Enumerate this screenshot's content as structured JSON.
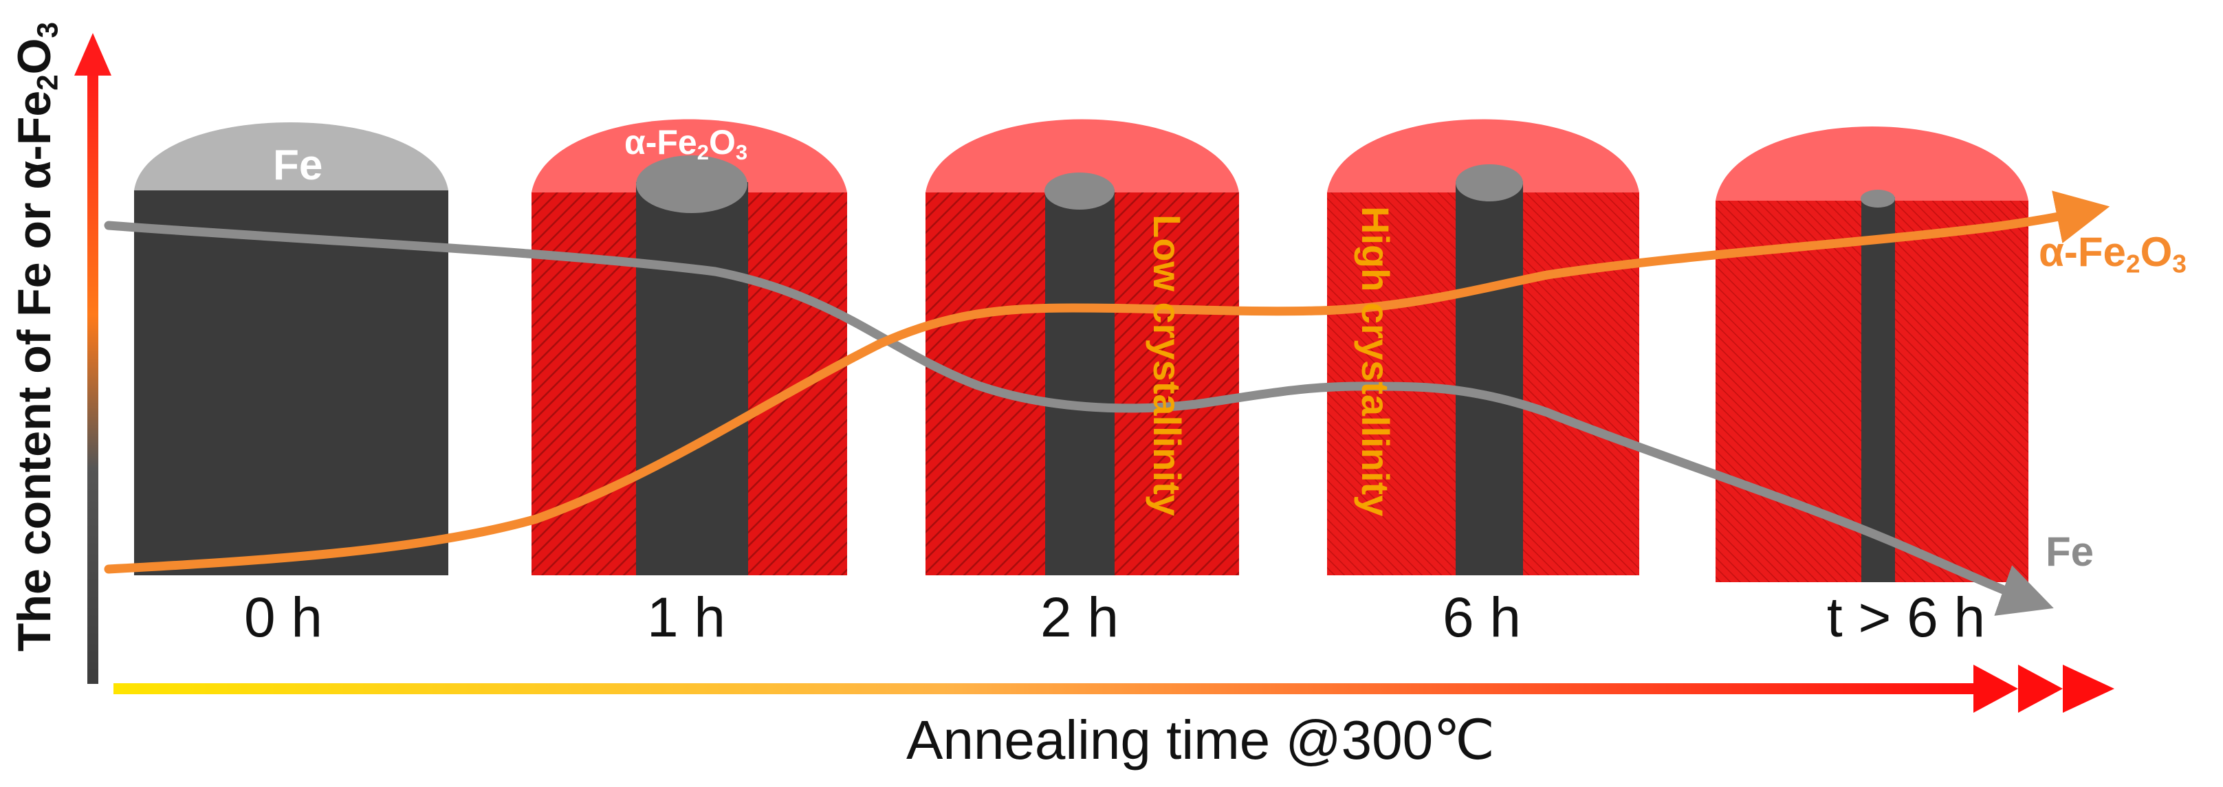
{
  "diagram": {
    "y_axis_title": {
      "prefix": "The content of Fe or α-Fe",
      "sub1": "2",
      "mid": "O",
      "sub2": "3"
    },
    "x_axis_title": "Annealing time @300℃",
    "stages": [
      {
        "time_label": "0 h",
        "cap_label": "Fe"
      },
      {
        "time_label": "1 h",
        "cap_label": {
          "prefix": "α-Fe",
          "sub1": "2",
          "mid": "O",
          "sub2": "3"
        }
      },
      {
        "time_label": "2 h",
        "side_text": "Low crystallinity"
      },
      {
        "time_label": "6 h",
        "side_text": "High crystallinity"
      },
      {
        "time_label": "t > 6 h"
      }
    ],
    "series": [
      {
        "name": {
          "prefix": "α-Fe",
          "sub1": "2",
          "mid": "O",
          "sub2": "3"
        },
        "trend": "increasing",
        "color": "#f58a2e"
      },
      {
        "name": "Fe",
        "trend": "decreasing",
        "color": "#8c8c8c"
      }
    ],
    "colors": {
      "fe_core": "#3b3b3b",
      "fe_cap": "#b5b5b5",
      "oxide_body": "#e31414",
      "oxide_cap": "#ff6666",
      "crystallinity_text": "#f5a300"
    }
  }
}
